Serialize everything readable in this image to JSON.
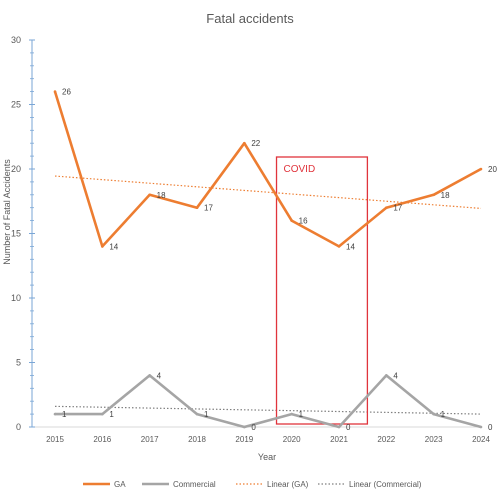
{
  "chart_data": {
    "type": "line",
    "title": "Fatal accidents",
    "xlabel": "Year",
    "ylabel": "Number of Fatal Accidents",
    "categories": [
      "2015",
      "2016",
      "2017",
      "2018",
      "2019",
      "2020",
      "2021",
      "2022",
      "2023",
      "2024"
    ],
    "ylim": [
      0,
      30
    ],
    "yticks": [
      0,
      5,
      10,
      15,
      20,
      25,
      30
    ],
    "grid": false,
    "legend_position": "bottom",
    "series": [
      {
        "name": "GA",
        "values": [
          26,
          14,
          18,
          17,
          22,
          16,
          14,
          17,
          18,
          20
        ],
        "color": "#ED7D31"
      },
      {
        "name": "Commercial",
        "values": [
          1,
          1,
          4,
          1,
          0,
          1,
          0,
          4,
          1,
          0
        ],
        "color": "#A5A5A5"
      }
    ],
    "trendlines": [
      {
        "name": "Linear (GA)",
        "of": "GA",
        "color": "#ED7D31",
        "style": "dotted"
      },
      {
        "name": "Linear (Commercial)",
        "of": "Commercial",
        "color": "#7F7F7F",
        "style": "dotted"
      }
    ],
    "annotations": [
      {
        "text": "COVID",
        "x_span": [
          "2020",
          "2021"
        ],
        "color": "#E0343C",
        "shape": "rectangle"
      }
    ]
  }
}
